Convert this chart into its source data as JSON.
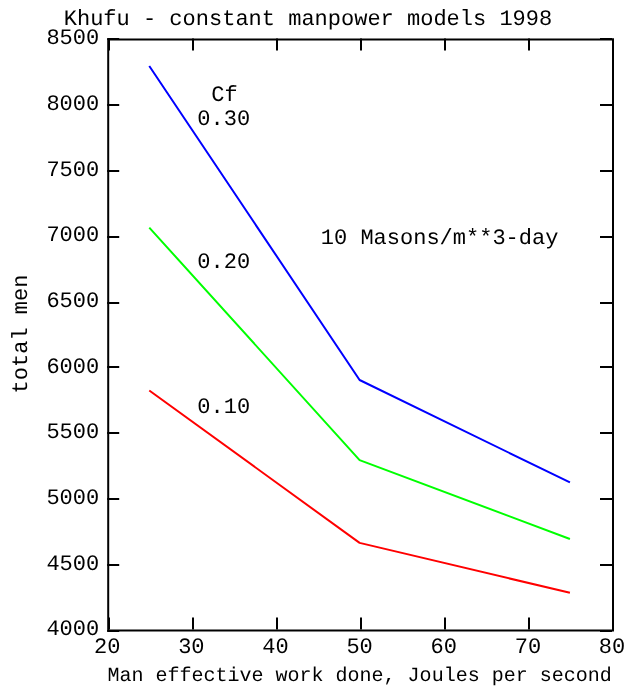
{
  "chart_data": {
    "type": "line",
    "title": "Khufu - constant manpower models 1998",
    "xlabel": "Man effective work done, Joules per second",
    "ylabel": "total men",
    "legend_title": "Cf",
    "annotations": [
      "10 Masons/m**3-day"
    ],
    "x": [
      25,
      50,
      75
    ],
    "series": [
      {
        "name": "0.30",
        "color": "#0000ff",
        "values": [
          8290,
          5900,
          5120
        ]
      },
      {
        "name": "0.20",
        "color": "#00ff00",
        "values": [
          7060,
          5290,
          4690
        ]
      },
      {
        "name": "0.10",
        "color": "#ff0000",
        "values": [
          5820,
          4660,
          4280
        ]
      }
    ],
    "xlim": [
      20,
      80
    ],
    "xticks": [
      20,
      30,
      40,
      50,
      60,
      70,
      80
    ],
    "ylim": [
      4000,
      8500
    ],
    "yticks": [
      4000,
      4500,
      5000,
      5500,
      6000,
      6500,
      7000,
      7500,
      8000,
      8500
    ],
    "legend": false,
    "marker": "none",
    "line_style": "solid"
  }
}
